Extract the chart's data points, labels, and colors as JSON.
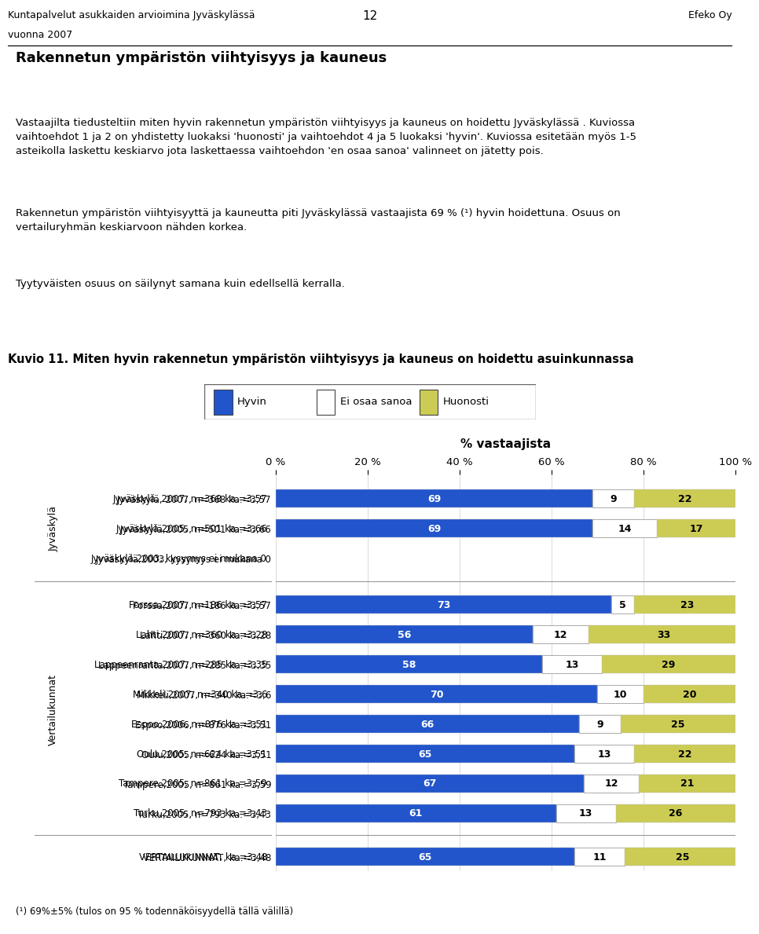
{
  "header_left_line1": "Kuntapalvelut asukkaiden arvioimina Jyväskylässä",
  "header_left_line2": "vuonna 2007",
  "header_right": "Efeko Oy",
  "header_page": "12",
  "title_main": "Rakennetun ympäristön viihtyisyys ja kauneus",
  "body_text1": "Vastaajilta tiedusteltiin miten hyvin rakennetun ympäristön viihtyisyys ja kauneus on hoidettu Jyväskylässä . Kuviossa\nvaihtoehdot 1 ja 2 on yhdistetty luokaksi 'huonosti' ja vaihtoehdot 4 ja 5 luokaksi 'hyvin'. Kuviossa esitetään myös 1-5\nasteikolla laskettu keskiarvo jota laskettaessa vaihtoehdon 'en osaa sanoa' valinneet on jätetty pois.",
  "body_text2": "Rakennetun ympäristön viihtyisyyttä ja kauneutta piti Jyväskylässä vastaajista 69 % (¹) hyvin hoidettuna. Osuus on\nvertailuryhmän keskiarvoon nähden korkea.",
  "body_text3": "Tyytyväisten osuus on säilynyt samana kuin edellsellä kerralla.",
  "chart_title": "Kuvio 11. Miten hyvin rakennetun ympäristön viihtyisyys ja kauneus on hoidettu asuinkunnassa",
  "footnote": "(¹) 69%±5% (tulos on 95 % todennäköisyydellä tällä välillä)",
  "legend_labels": [
    "Hyvin",
    "Ei osaa sanoa",
    "Huonosti"
  ],
  "color_hyvin": "#2255CC",
  "color_ei_osaa": "#FFFFFF",
  "color_huonosti": "#CCCC55",
  "x_ticks": [
    "0 %",
    "20 %",
    "40 %",
    "60 %",
    "80 %",
    "100 %"
  ],
  "x_tick_vals": [
    0,
    20,
    40,
    60,
    80,
    100
  ],
  "x_label": "% vastaajista",
  "categories": [
    "Jyväskylä, 2007, n=368 ka.=3,57",
    "Jyväskylä,2005, n=501 ka.=3,66",
    "Jyväskylä,2003, kysymys ei mukana 0",
    "Forssa,2007, n=186 ka.=3,57",
    "Lahti,2007, n=360 ka.=3,28",
    "Lappeenranta,2007, n=285 ka.=3,35",
    "Mikkeli,2007, n=340 ka.=3,6",
    "Espoo,2006, n=876 ka.=3,51",
    "Oulu,2005, n=624 ka.=3,51",
    "Tampere,2005, n=861 ka.=3,59",
    "Turku,2005, n=793 ka.=3,43",
    "VERTAILUKUNNAT, ka.=3,48"
  ],
  "hyvin": [
    69,
    69,
    0,
    73,
    56,
    58,
    70,
    66,
    65,
    67,
    61,
    65
  ],
  "ei_osaa": [
    9,
    14,
    0,
    5,
    12,
    13,
    10,
    9,
    13,
    12,
    13,
    11
  ],
  "huonosti": [
    22,
    17,
    0,
    23,
    33,
    29,
    20,
    25,
    22,
    21,
    26,
    25
  ],
  "group_jyv_label": "Jyväskylä",
  "group_vert_label": "Vertailukunnat"
}
